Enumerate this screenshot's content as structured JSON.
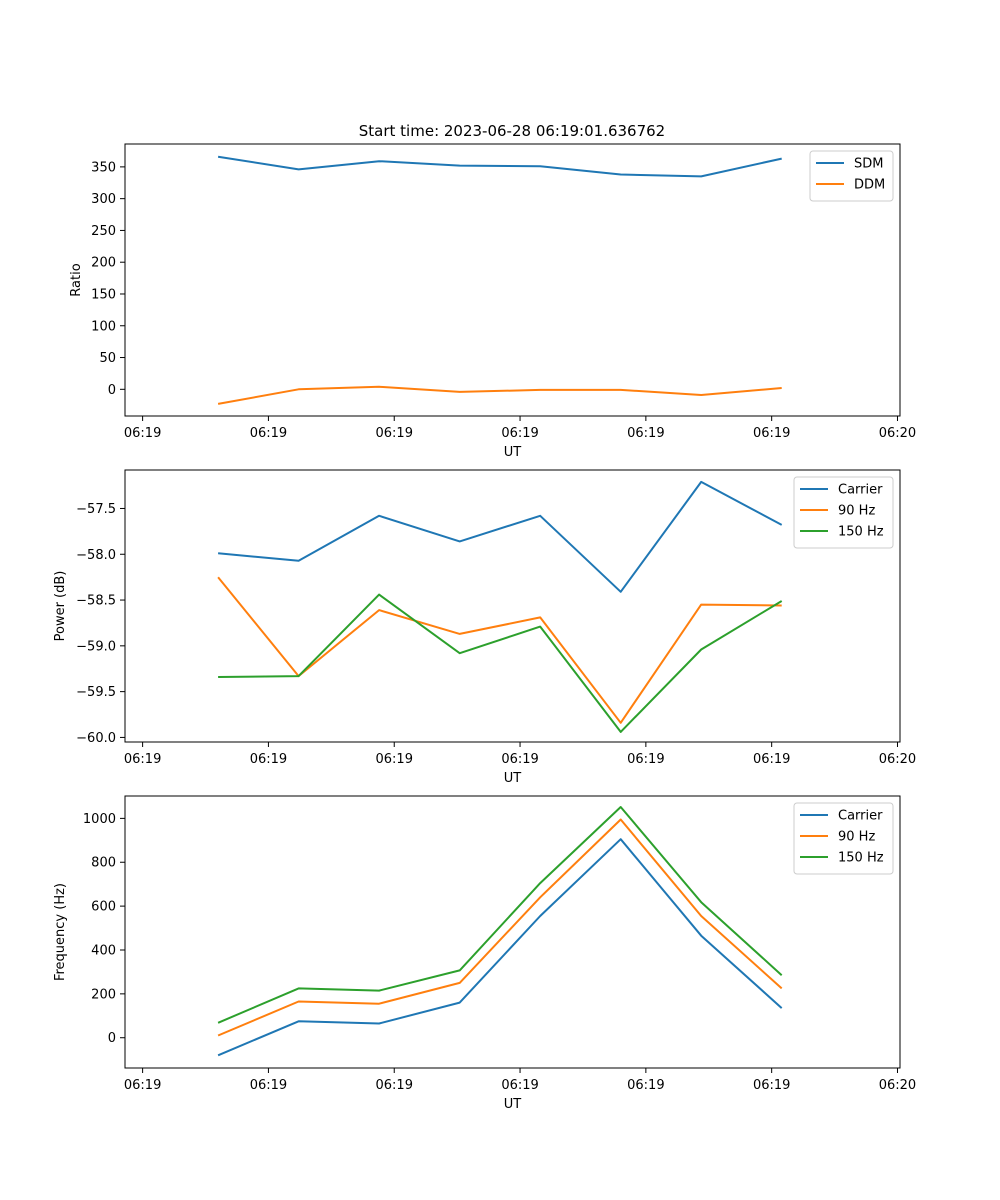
{
  "figure_title": "Start time: 2023-06-28 06:19:01.636762",
  "colors": {
    "blue": "#1f77b4",
    "orange": "#ff7f0e",
    "green": "#2ca02c"
  },
  "chart_data": [
    {
      "type": "line",
      "title": "Start time: 2023-06-28 06:19:01.636762",
      "xlabel": "UT",
      "ylabel": "Ratio",
      "x": [
        1.5,
        3.1,
        4.7,
        6.3,
        7.9,
        9.5,
        11.1,
        12.7
      ],
      "x_ticks": [
        0,
        2.5,
        5,
        7.5,
        10,
        12.5,
        15
      ],
      "x_tick_labels": [
        "06:19",
        "06:19",
        "06:19",
        "06:19",
        "06:19",
        "06:19",
        "06:20"
      ],
      "xlim": [
        -0.35,
        15.05
      ],
      "ylim": [
        -42,
        386
      ],
      "y_ticks": [
        0,
        50,
        100,
        150,
        200,
        250,
        300,
        350
      ],
      "y_tick_labels": [
        "0",
        "50",
        "100",
        "150",
        "200",
        "250",
        "300",
        "350"
      ],
      "legend_position": "top-right",
      "series": [
        {
          "name": "SDM",
          "color": "#1f77b4",
          "values": [
            366,
            346,
            359,
            352,
            351,
            338,
            335,
            363
          ]
        },
        {
          "name": "DDM",
          "color": "#ff7f0e",
          "values": [
            -23,
            0,
            4,
            -4,
            -1,
            -1,
            -9,
            2
          ]
        }
      ]
    },
    {
      "type": "line",
      "xlabel": "UT",
      "ylabel": "Power (dB)",
      "x": [
        1.5,
        3.1,
        4.7,
        6.3,
        7.9,
        9.5,
        11.1,
        12.7
      ],
      "x_ticks": [
        0,
        2.5,
        5,
        7.5,
        10,
        12.5,
        15
      ],
      "x_tick_labels": [
        "06:19",
        "06:19",
        "06:19",
        "06:19",
        "06:19",
        "06:19",
        "06:20"
      ],
      "xlim": [
        -0.35,
        15.05
      ],
      "ylim": [
        -60.05,
        -57.08
      ],
      "y_ticks": [
        -60.0,
        -59.5,
        -59.0,
        -58.5,
        -58.0,
        -57.5
      ],
      "y_tick_labels": [
        "−60.0",
        "−59.5",
        "−59.0",
        "−58.5",
        "−58.0",
        "−57.5"
      ],
      "legend_position": "top-right",
      "series": [
        {
          "name": "Carrier",
          "color": "#1f77b4",
          "values": [
            -57.99,
            -58.07,
            -57.58,
            -57.86,
            -57.58,
            -58.41,
            -57.21,
            -57.68
          ]
        },
        {
          "name": "90 Hz",
          "color": "#ff7f0e",
          "values": [
            -58.25,
            -59.33,
            -58.61,
            -58.87,
            -58.69,
            -59.84,
            -58.55,
            -58.56
          ]
        },
        {
          "name": "150 Hz",
          "color": "#2ca02c",
          "values": [
            -59.34,
            -59.33,
            -58.44,
            -59.08,
            -58.79,
            -59.94,
            -59.04,
            -58.51
          ]
        }
      ]
    },
    {
      "type": "line",
      "xlabel": "UT",
      "ylabel": "Frequency (Hz)",
      "x": [
        1.5,
        3.1,
        4.7,
        6.3,
        7.9,
        9.5,
        11.1,
        12.7
      ],
      "x_ticks": [
        0,
        2.5,
        5,
        7.5,
        10,
        12.5,
        15
      ],
      "x_tick_labels": [
        "06:19",
        "06:19",
        "06:19",
        "06:19",
        "06:19",
        "06:19",
        "06:20"
      ],
      "xlim": [
        -0.35,
        15.05
      ],
      "ylim": [
        -138,
        1102
      ],
      "y_ticks": [
        0,
        200,
        400,
        600,
        800,
        1000
      ],
      "y_tick_labels": [
        "0",
        "200",
        "400",
        "600",
        "800",
        "1000"
      ],
      "legend_position": "top-right",
      "series": [
        {
          "name": "Carrier",
          "color": "#1f77b4",
          "values": [
            -80,
            75,
            65,
            160,
            555,
            905,
            465,
            135
          ]
        },
        {
          "name": "90 Hz",
          "color": "#ff7f0e",
          "values": [
            10,
            165,
            155,
            250,
            640,
            995,
            555,
            225
          ]
        },
        {
          "name": "150 Hz",
          "color": "#2ca02c",
          "values": [
            68,
            225,
            215,
            307,
            705,
            1052,
            618,
            285
          ]
        }
      ]
    }
  ]
}
